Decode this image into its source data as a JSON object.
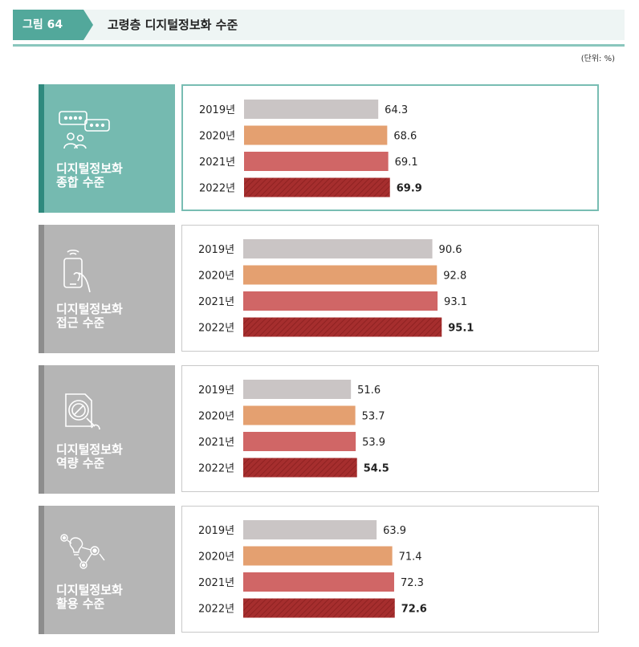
{
  "figure": {
    "label": "그림 64",
    "title": "고령층 디지털정보화 수준",
    "unit": "(단위: %)"
  },
  "colors": {
    "2019": "#cac5c5",
    "2020": "#e4a070",
    "2021": "#d06666",
    "2022": "#a62e2e"
  },
  "panels": [
    {
      "title_line1": "디지털정보화",
      "title_line2": "종합 수준",
      "icon": "chat-people-icon"
    },
    {
      "title_line1": "디지털정보화",
      "title_line2": "접근 수준",
      "icon": "smartphone-hand-icon"
    },
    {
      "title_line1": "디지털정보화",
      "title_line2": "역량 수준",
      "icon": "magnifier-disc-icon"
    },
    {
      "title_line1": "디지털정보화",
      "title_line2": "활용 수준",
      "icon": "lightbulb-gears-icon"
    }
  ],
  "chart_data": [
    {
      "type": "bar",
      "categories": [
        "2019년",
        "2020년",
        "2021년",
        "2022년"
      ],
      "values": [
        64.3,
        68.6,
        69.1,
        69.9
      ],
      "xlim": [
        0,
        100
      ]
    },
    {
      "type": "bar",
      "categories": [
        "2019년",
        "2020년",
        "2021년",
        "2022년"
      ],
      "values": [
        90.6,
        92.8,
        93.1,
        95.1
      ],
      "xlim": [
        0,
        100
      ]
    },
    {
      "type": "bar",
      "categories": [
        "2019년",
        "2020년",
        "2021년",
        "2022년"
      ],
      "values": [
        51.6,
        53.7,
        53.9,
        54.5
      ],
      "xlim": [
        0,
        100
      ]
    },
    {
      "type": "bar",
      "categories": [
        "2019년",
        "2020년",
        "2021년",
        "2022년"
      ],
      "values": [
        63.9,
        71.4,
        72.3,
        72.6
      ],
      "xlim": [
        0,
        100
      ]
    }
  ]
}
